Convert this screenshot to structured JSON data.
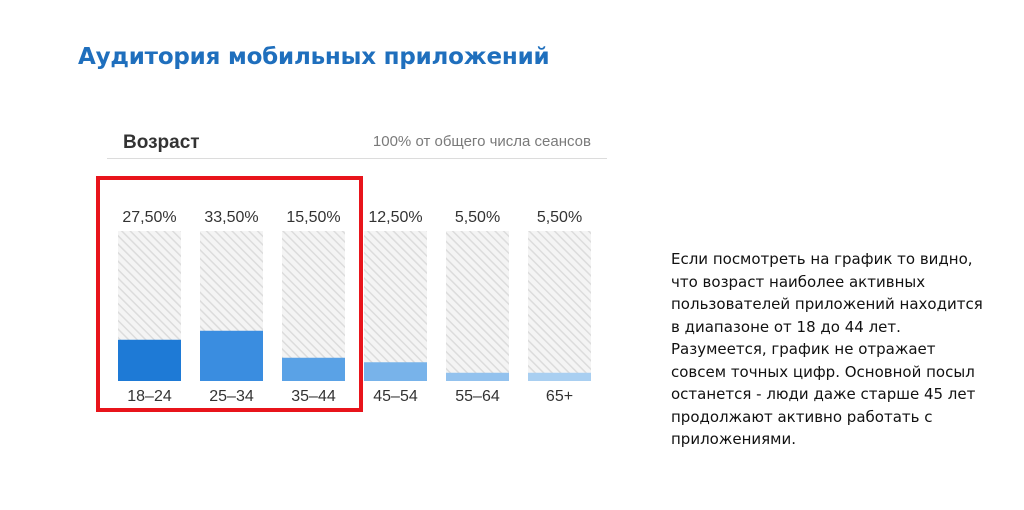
{
  "slide": {
    "title": "Аудитория мобильных приложений"
  },
  "chart_data": {
    "type": "bar",
    "title": "Возраст",
    "subtitle": "100% от общего числа сеансов",
    "categories": [
      "18–24",
      "25–34",
      "35–44",
      "45–54",
      "55–64",
      "65+"
    ],
    "values": [
      27.5,
      33.5,
      15.5,
      12.5,
      5.5,
      5.5
    ],
    "value_labels": [
      "27,50%",
      "33,50%",
      "15,50%",
      "12,50%",
      "5,50%",
      "5,50%"
    ],
    "ylim": [
      0,
      100
    ],
    "bar_colors": [
      "#1e7ad6",
      "#3a8de0",
      "#5aa2e6",
      "#78b3ea",
      "#93c2ee",
      "#a9cff1"
    ],
    "track_color": "#e3e3e3",
    "highlight": {
      "categories": [
        "18–24",
        "25–34",
        "35–44"
      ],
      "color": "#e8141b"
    }
  },
  "description": {
    "paragraph1": "Если посмотреть на график то видно, что возраст наиболее активных пользователей приложений находится в диапазоне от 18 до 44 лет.",
    "paragraph2": "Разумеется, график не отражает совсем точных цифр. Основной посыл останется - люди даже старше 45 лет продолжают активно работать с приложениями."
  }
}
